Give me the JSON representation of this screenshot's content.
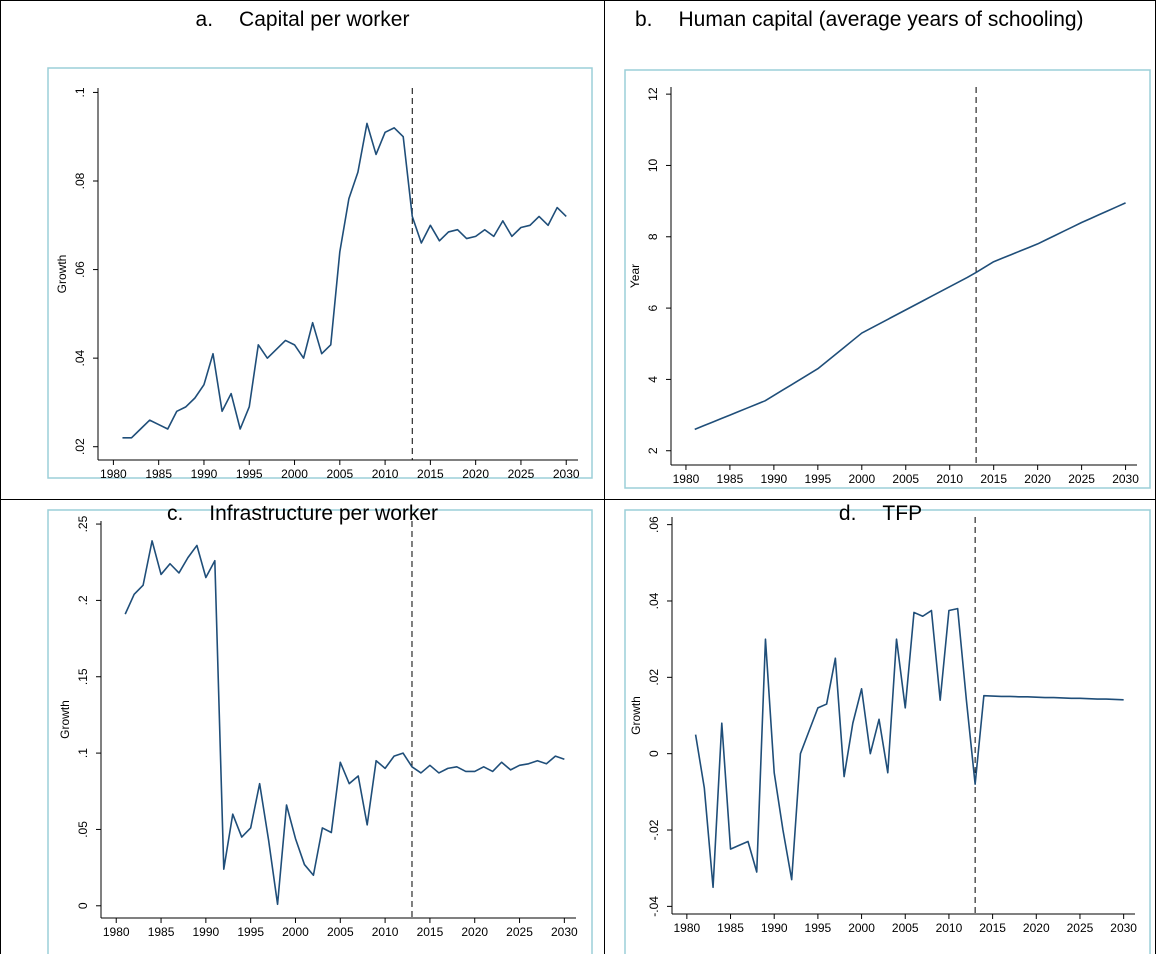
{
  "chart_data": [
    {
      "type": "line",
      "panel": "a.",
      "title": "Capital per worker",
      "ylabel": "Growth",
      "x": [
        1981,
        1982,
        1983,
        1984,
        1985,
        1986,
        1987,
        1988,
        1989,
        1990,
        1991,
        1992,
        1993,
        1994,
        1995,
        1996,
        1997,
        1998,
        1999,
        2000,
        2001,
        2002,
        2003,
        2004,
        2005,
        2006,
        2007,
        2008,
        2009,
        2010,
        2011,
        2012,
        2013,
        2014,
        2015,
        2016,
        2017,
        2018,
        2019,
        2020,
        2021,
        2022,
        2023,
        2024,
        2025,
        2026,
        2027,
        2028,
        2029,
        2030
      ],
      "values": [
        0.022,
        0.022,
        0.024,
        0.026,
        0.025,
        0.024,
        0.028,
        0.029,
        0.031,
        0.034,
        0.041,
        0.028,
        0.032,
        0.024,
        0.029,
        0.043,
        0.04,
        0.042,
        0.044,
        0.043,
        0.04,
        0.048,
        0.041,
        0.043,
        0.064,
        0.076,
        0.082,
        0.093,
        0.086,
        0.091,
        0.092,
        0.09,
        0.072,
        0.066,
        0.07,
        0.0665,
        0.0685,
        0.069,
        0.067,
        0.0675,
        0.069,
        0.0675,
        0.071,
        0.0675,
        0.0695,
        0.07,
        0.072,
        0.07,
        0.074,
        0.072
      ],
      "color": "#1f4e79",
      "vline": 2013,
      "xlim": [
        1978.3,
        2031.3
      ],
      "xticks": [
        1980,
        1985,
        1990,
        1995,
        2000,
        2005,
        2010,
        2015,
        2020,
        2025,
        2030
      ],
      "ylim": [
        0.017,
        0.101
      ],
      "yticks": [
        {
          "value": 0.02,
          "label": ".02"
        },
        {
          "value": 0.04,
          "label": ".04"
        },
        {
          "value": 0.06,
          "label": ".06"
        },
        {
          "value": 0.08,
          "label": ".08"
        },
        {
          "value": 0.1,
          "label": ".1"
        }
      ]
    },
    {
      "type": "line",
      "panel": "b.",
      "title": "Human capital (average years of schooling)",
      "ylabel": "Year",
      "x": [
        1981,
        1982,
        1983,
        1984,
        1985,
        1986,
        1987,
        1988,
        1989,
        1990,
        1991,
        1992,
        1993,
        1994,
        1995,
        1996,
        1997,
        1998,
        1999,
        2000,
        2001,
        2002,
        2003,
        2004,
        2005,
        2006,
        2007,
        2008,
        2009,
        2010,
        2011,
        2012,
        2013,
        2014,
        2015,
        2016,
        2017,
        2018,
        2019,
        2020,
        2021,
        2022,
        2023,
        2024,
        2025,
        2026,
        2027,
        2028,
        2029,
        2030
      ],
      "values": [
        2.6,
        2.7,
        2.8,
        2.9,
        3.0,
        3.1,
        3.2,
        3.3,
        3.4,
        3.55,
        3.7,
        3.85,
        4.0,
        4.15,
        4.3,
        4.5,
        4.7,
        4.9,
        5.1,
        5.3,
        5.43,
        5.56,
        5.69,
        5.82,
        5.95,
        6.08,
        6.21,
        6.34,
        6.47,
        6.6,
        6.73,
        6.86,
        7.0,
        7.15,
        7.3,
        7.4,
        7.5,
        7.6,
        7.7,
        7.8,
        7.92,
        8.04,
        8.16,
        8.28,
        8.4,
        8.51,
        8.62,
        8.73,
        8.84,
        8.95
      ],
      "color": "#1f4e79",
      "vline": 2013,
      "xlim": [
        1978.3,
        2031.3
      ],
      "xticks": [
        1980,
        1985,
        1990,
        1995,
        2000,
        2005,
        2010,
        2015,
        2020,
        2025,
        2030
      ],
      "ylim": [
        1.6,
        12.2
      ],
      "yticks": [
        2,
        4,
        6,
        8,
        10,
        12
      ]
    },
    {
      "type": "line",
      "panel": "c.",
      "title": "Infrastructure per worker",
      "ylabel": "Growth",
      "x": [
        1981,
        1982,
        1983,
        1984,
        1985,
        1986,
        1987,
        1988,
        1989,
        1990,
        1991,
        1992,
        1993,
        1994,
        1995,
        1996,
        1997,
        1998,
        1999,
        2000,
        2001,
        2002,
        2003,
        2004,
        2005,
        2006,
        2007,
        2008,
        2009,
        2010,
        2011,
        2012,
        2013,
        2014,
        2015,
        2016,
        2017,
        2018,
        2019,
        2020,
        2021,
        2022,
        2023,
        2024,
        2025,
        2026,
        2027,
        2028,
        2029,
        2030
      ],
      "values": [
        0.191,
        0.204,
        0.21,
        0.239,
        0.217,
        0.224,
        0.218,
        0.228,
        0.236,
        0.215,
        0.226,
        0.024,
        0.06,
        0.045,
        0.051,
        0.08,
        0.043,
        0.001,
        0.066,
        0.044,
        0.027,
        0.02,
        0.051,
        0.048,
        0.094,
        0.08,
        0.085,
        0.053,
        0.095,
        0.09,
        0.098,
        0.1,
        0.091,
        0.087,
        0.092,
        0.087,
        0.09,
        0.091,
        0.088,
        0.088,
        0.091,
        0.088,
        0.094,
        0.089,
        0.092,
        0.093,
        0.095,
        0.093,
        0.098,
        0.096
      ],
      "color": "#1f4e79",
      "vline": 2013,
      "xlim": [
        1978.3,
        2031.3
      ],
      "xticks": [
        1980,
        1985,
        1990,
        1995,
        2000,
        2005,
        2010,
        2015,
        2020,
        2025,
        2030
      ],
      "ylim": [
        -0.008,
        0.252
      ],
      "yticks": [
        0,
        {
          "value": 0.05,
          "label": ".05"
        },
        {
          "value": 0.1,
          "label": ".1"
        },
        {
          "value": 0.15,
          "label": ".15"
        },
        {
          "value": 0.2,
          "label": ".2"
        },
        {
          "value": 0.25,
          "label": ".25"
        }
      ]
    },
    {
      "type": "line",
      "panel": "d.",
      "title": "TFP",
      "ylabel": "Growth",
      "x": [
        1981,
        1982,
        1983,
        1984,
        1985,
        1986,
        1987,
        1988,
        1989,
        1990,
        1991,
        1992,
        1993,
        1994,
        1995,
        1996,
        1997,
        1998,
        1999,
        2000,
        2001,
        2002,
        2003,
        2004,
        2005,
        2006,
        2007,
        2008,
        2009,
        2010,
        2011,
        2012,
        2013,
        2014,
        2015,
        2016,
        2017,
        2018,
        2019,
        2020,
        2021,
        2022,
        2023,
        2024,
        2025,
        2026,
        2027,
        2028,
        2029,
        2030
      ],
      "values": [
        0.005,
        -0.009,
        -0.035,
        0.008,
        -0.025,
        -0.024,
        -0.023,
        -0.031,
        0.03,
        -0.005,
        -0.02,
        -0.033,
        0.0,
        0.006,
        0.012,
        0.013,
        0.025,
        -0.006,
        0.008,
        0.017,
        0.0,
        0.009,
        -0.005,
        0.03,
        0.012,
        0.037,
        0.036,
        0.0375,
        0.014,
        0.0375,
        0.038,
        0.014,
        -0.008,
        0.0152,
        0.0151,
        0.015,
        0.015,
        0.0149,
        0.0149,
        0.0148,
        0.0147,
        0.0147,
        0.0146,
        0.0145,
        0.0145,
        0.0144,
        0.0143,
        0.0143,
        0.0142,
        0.0141
      ],
      "color": "#1f4e79",
      "vline": 2013,
      "xlim": [
        1978.3,
        2031.3
      ],
      "xticks": [
        1980,
        1985,
        1990,
        1995,
        2000,
        2005,
        2010,
        2015,
        2020,
        2025,
        2030
      ],
      "ylim": [
        -0.042,
        0.062
      ],
      "yticks": [
        {
          "value": -0.04,
          "label": "-.04"
        },
        {
          "value": -0.02,
          "label": "-.02"
        },
        0,
        {
          "value": 0.02,
          "label": ".02"
        },
        {
          "value": 0.04,
          "label": ".04"
        },
        {
          "value": 0.06,
          "label": ".06"
        }
      ]
    }
  ]
}
